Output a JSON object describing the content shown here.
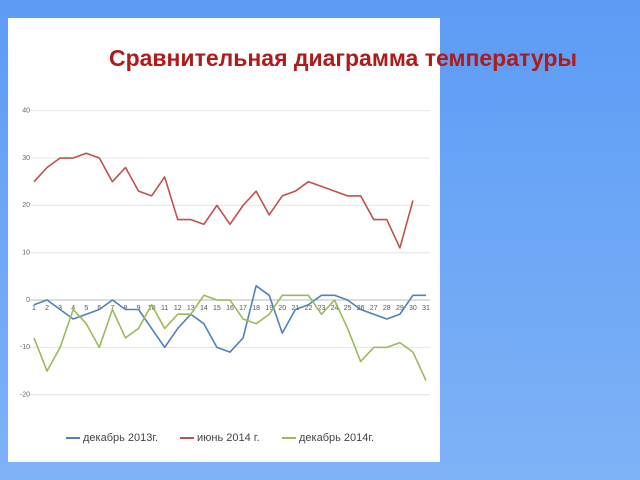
{
  "chart_data": {
    "type": "line",
    "title": "Сравнительная диаграмма температуры",
    "categories": [
      "1",
      "2",
      "3",
      "4",
      "5",
      "6",
      "7",
      "8",
      "9",
      "10",
      "11",
      "12",
      "13",
      "14",
      "15",
      "16",
      "17",
      "18",
      "19",
      "20",
      "21",
      "22",
      "23",
      "24",
      "25",
      "26",
      "27",
      "28",
      "29",
      "30",
      "31"
    ],
    "series": [
      {
        "name": "декабрь 2013г.",
        "color": "#4f81bd",
        "values": [
          -1,
          0,
          -2,
          -4,
          -3,
          -2,
          0,
          -2,
          -2,
          -6,
          -10,
          -6,
          -3,
          -5,
          -10,
          -11,
          -8,
          3,
          1,
          -7,
          -2,
          -1,
          1,
          1,
          0,
          -2,
          -3,
          -4,
          -3,
          1,
          1
        ]
      },
      {
        "name": "июнь 2014 г.",
        "color": "#c0504d",
        "values": [
          25,
          28,
          30,
          30,
          31,
          30,
          25,
          28,
          23,
          22,
          26,
          17,
          17,
          16,
          20,
          16,
          20,
          23,
          18,
          22,
          23,
          25,
          24,
          23,
          22,
          22,
          17,
          17,
          11,
          21,
          null
        ]
      },
      {
        "name": "декабрь 2014г.",
        "color": "#9bbb59",
        "values": [
          -8,
          -15,
          -10,
          -2,
          -5,
          -10,
          -2,
          -8,
          -6,
          -1,
          -6,
          -3,
          -3,
          1,
          0,
          0,
          -4,
          -5,
          -3,
          1,
          1,
          1,
          -3,
          0,
          -6,
          -13,
          -10,
          -10,
          -9,
          -11,
          -17
        ]
      }
    ],
    "ylim": [
      -20,
      40
    ],
    "yticks": [
      -20,
      -10,
      0,
      10,
      20,
      30,
      40
    ],
    "grid": true
  }
}
